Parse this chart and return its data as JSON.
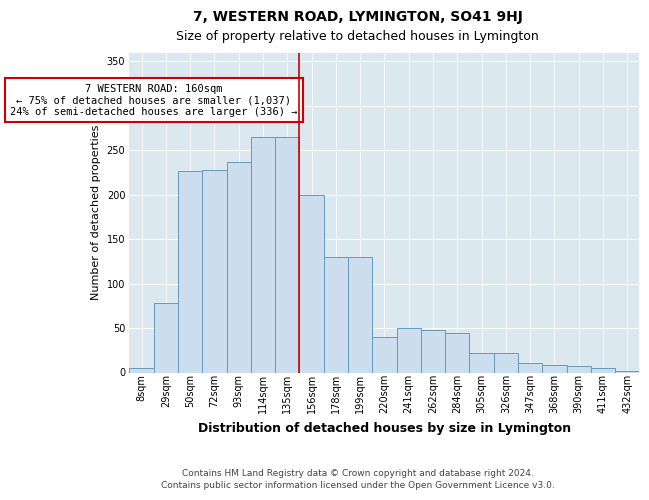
{
  "title": "7, WESTERN ROAD, LYMINGTON, SO41 9HJ",
  "subtitle": "Size of property relative to detached houses in Lymington",
  "xlabel": "Distribution of detached houses by size in Lymington",
  "ylabel": "Number of detached properties",
  "bar_color": "#ccdded",
  "bar_edge_color": "#6699bb",
  "background_color": "#dce8f0",
  "vline_color": "#cc0000",
  "annotation_text": "7 WESTERN ROAD: 160sqm\n← 75% of detached houses are smaller (1,037)\n24% of semi-detached houses are larger (336) →",
  "footer1": "Contains HM Land Registry data © Crown copyright and database right 2024.",
  "footer2": "Contains public sector information licensed under the Open Government Licence v3.0.",
  "categories": [
    "8sqm",
    "29sqm",
    "50sqm",
    "72sqm",
    "93sqm",
    "114sqm",
    "135sqm",
    "156sqm",
    "178sqm",
    "199sqm",
    "220sqm",
    "241sqm",
    "262sqm",
    "284sqm",
    "305sqm",
    "326sqm",
    "347sqm",
    "368sqm",
    "390sqm",
    "411sqm",
    "432sqm"
  ],
  "bar_heights": [
    5,
    78,
    227,
    228,
    237,
    265,
    265,
    200,
    130,
    130,
    40,
    50,
    48,
    45,
    22,
    22,
    11,
    8,
    7,
    5,
    2
  ],
  "vline_index": 6.5,
  "ylim": [
    0,
    360
  ],
  "yticks": [
    0,
    50,
    100,
    150,
    200,
    250,
    300,
    350
  ],
  "title_fontsize": 10,
  "subtitle_fontsize": 9,
  "ylabel_fontsize": 8,
  "xlabel_fontsize": 9,
  "tick_fontsize": 7,
  "footer_fontsize": 6.5
}
